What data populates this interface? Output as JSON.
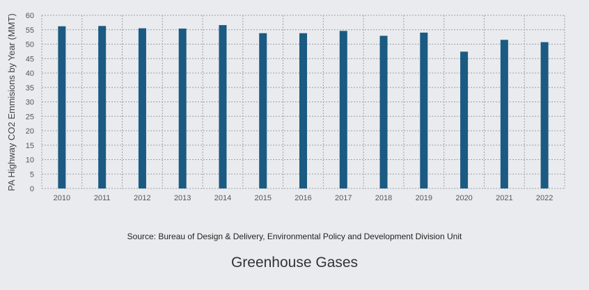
{
  "source_text": "Source: Bureau of Design & Delivery, Environmental Policy and Development Division Unit",
  "caption": "Greenhouse Gases",
  "colors": {
    "bar": "#1b5a82",
    "grid": "#9aa0a6",
    "background": "#e9ebee"
  },
  "chart_data": {
    "type": "bar",
    "title": "",
    "xlabel": "",
    "ylabel": "PA Highway CO2 Emmisions by Year (MMT)",
    "categories": [
      "2010",
      "2011",
      "2012",
      "2013",
      "2014",
      "2015",
      "2016",
      "2017",
      "2018",
      "2019",
      "2020",
      "2021",
      "2022"
    ],
    "values": [
      56.2,
      56.3,
      55.5,
      55.4,
      56.6,
      53.8,
      53.8,
      54.6,
      52.9,
      54.0,
      47.4,
      51.5,
      50.7
    ],
    "yticks": [
      0,
      5,
      10,
      15,
      20,
      25,
      30,
      35,
      40,
      45,
      50,
      55,
      60
    ],
    "ylim": [
      0,
      60
    ],
    "grid": true,
    "legend": "none"
  }
}
